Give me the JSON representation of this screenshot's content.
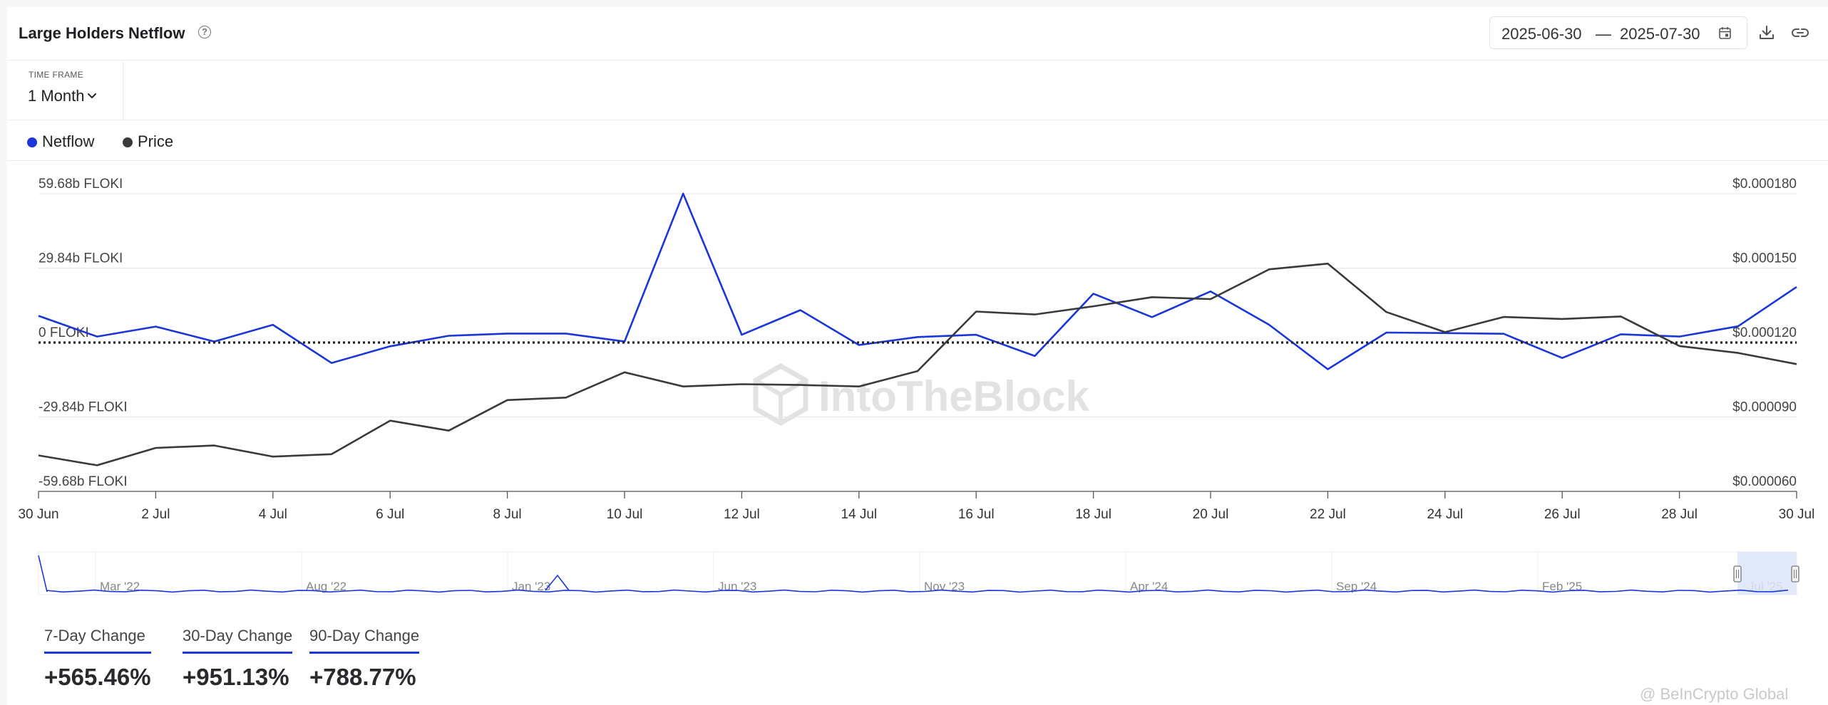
{
  "header": {
    "title": "Large Holders Netflow",
    "help_icon": "?",
    "date_start": "2025-06-30",
    "date_separator": "—",
    "date_end": "2025-07-30"
  },
  "timeframe": {
    "label": "TIME FRAME",
    "value": "1 Month"
  },
  "legend": [
    {
      "name": "Netflow",
      "color": "#1a36d8"
    },
    {
      "name": "Price",
      "color": "#3a3a3c"
    }
  ],
  "watermark": "IntoTheBlock",
  "chart_data": {
    "type": "line",
    "x": [
      "30 Jun",
      "1 Jul",
      "2 Jul",
      "3 Jul",
      "4 Jul",
      "5 Jul",
      "6 Jul",
      "7 Jul",
      "8 Jul",
      "9 Jul",
      "10 Jul",
      "11 Jul",
      "12 Jul",
      "13 Jul",
      "14 Jul",
      "15 Jul",
      "16 Jul",
      "17 Jul",
      "18 Jul",
      "19 Jul",
      "20 Jul",
      "21 Jul",
      "22 Jul",
      "23 Jul",
      "24 Jul",
      "25 Jul",
      "26 Jul",
      "27 Jul",
      "28 Jul",
      "29 Jul",
      "30 Jul"
    ],
    "x_tick_labels": [
      "30 Jun",
      "2 Jul",
      "4 Jul",
      "6 Jul",
      "8 Jul",
      "10 Jul",
      "12 Jul",
      "14 Jul",
      "16 Jul",
      "18 Jul",
      "20 Jul",
      "22 Jul",
      "24 Jul",
      "26 Jul",
      "28 Jul",
      "30 Jul"
    ],
    "series": [
      {
        "name": "Netflow",
        "axis": "left",
        "color": "#1a36d8",
        "values": [
          10.7,
          2.4,
          6.4,
          0.4,
          7.1,
          -8.2,
          -1.5,
          2.7,
          3.6,
          3.6,
          0.4,
          59.7,
          3.1,
          13.0,
          -1.0,
          2.2,
          3.1,
          -5.4,
          19.6,
          10.2,
          20.5,
          7.1,
          -10.7,
          4.0,
          3.8,
          3.5,
          -6.2,
          3.3,
          2.4,
          6.5,
          22.3
        ]
      },
      {
        "name": "Price",
        "axis": "right",
        "color": "#3a3a3c",
        "values": [
          7.45e-05,
          7.05e-05,
          7.75e-05,
          7.85e-05,
          7.4e-05,
          7.5e-05,
          8.85e-05,
          8.45e-05,
          9.68e-05,
          9.78e-05,
          0.000108,
          0.0001023,
          0.0001032,
          0.0001029,
          0.0001023,
          0.0001085,
          0.0001325,
          0.0001313,
          0.0001346,
          0.0001383,
          0.0001375,
          0.0001495,
          0.0001518,
          0.0001323,
          0.0001242,
          0.0001303,
          0.0001295,
          0.0001305,
          0.0001186,
          0.0001158,
          0.0001113
        ]
      }
    ],
    "y_left": {
      "unit": "b FLOKI",
      "ticks": [
        "59.68b FLOKI",
        "29.84b FLOKI",
        "0 FLOKI",
        "-29.84b FLOKI",
        "-59.68b FLOKI"
      ],
      "range": [
        -59.68,
        59.68
      ]
    },
    "y_right": {
      "ticks": [
        "$0.000180",
        "$0.000150",
        "$0.000120",
        "$0.000090",
        "$0.000060"
      ],
      "range": [
        6e-05,
        0.00018
      ]
    },
    "zero_line": "dotted",
    "grid": true,
    "navigator": {
      "labels": [
        "Mar '22",
        "Aug '22",
        "Jan '23",
        "Jun '23",
        "Nov '23",
        "Apr '24",
        "Sep '24",
        "Feb '25",
        "Jul '25"
      ],
      "selected_range": "last month"
    }
  },
  "stats": [
    {
      "label": "7-Day Change",
      "value": "+565.46%"
    },
    {
      "label": "30-Day Change",
      "value": "+951.13%"
    },
    {
      "label": "90-Day Change",
      "value": "+788.77%"
    }
  ],
  "credit": "@ BeInCrypto Global"
}
